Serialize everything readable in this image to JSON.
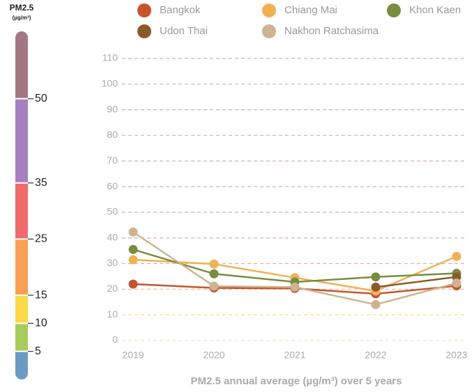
{
  "chart_data": [
    {
      "type": "line",
      "xlabel": "PM2.5 annual average (µg/m³) over 5 years",
      "categories": [
        "2019",
        "2020",
        "2021",
        "2022",
        "2023"
      ],
      "series": [
        {
          "name": "Bangkok",
          "color": "#c4552e",
          "values": [
            22,
            20.5,
            20.3,
            18.2,
            21.3
          ]
        },
        {
          "name": "Chiang Mai",
          "color": "#f0b153",
          "values": [
            31.5,
            29.8,
            24.5,
            19.3,
            32.8
          ]
        },
        {
          "name": "Khon Kaen",
          "color": "#7a8c3e",
          "values": [
            35.5,
            26,
            22.8,
            24.8,
            26.2
          ]
        },
        {
          "name": "Udon Thai",
          "color": "#8b5a2b",
          "values": [
            null,
            null,
            null,
            20.8,
            24.8
          ]
        },
        {
          "name": "Nakhon Ratchasima",
          "color": "#cdb38f",
          "values": [
            42.3,
            21.2,
            20.8,
            14,
            22.4
          ]
        }
      ],
      "ylim": [
        0,
        110
      ],
      "yticks": [
        0,
        10,
        20,
        30,
        40,
        50,
        60,
        70,
        80,
        90,
        100,
        110
      ],
      "grid": true,
      "grid_colors": [
        "#f3e7a6",
        "#f5de7a",
        "#f0b89a",
        "#e8a5a5",
        "#cdb0b8",
        "#cdb0b8",
        "#cdb0b8",
        "#cdb0b8",
        "#cdb0b8",
        "#cdb0b8",
        "#cdb0b8",
        "#cdb0b8"
      ],
      "legend": "top"
    },
    {
      "type": "colorbar",
      "title": "PM2.5",
      "subtitle": "(µg/m³)",
      "ylim": [
        0,
        62
      ],
      "yticks": [
        5,
        10,
        15,
        25,
        35,
        50
      ],
      "colors": [
        "#6b9ac4",
        "#a8cc5c",
        "#fcd94a",
        "#f79f55",
        "#f06b6b",
        "#a580be",
        "#a37882"
      ]
    }
  ]
}
